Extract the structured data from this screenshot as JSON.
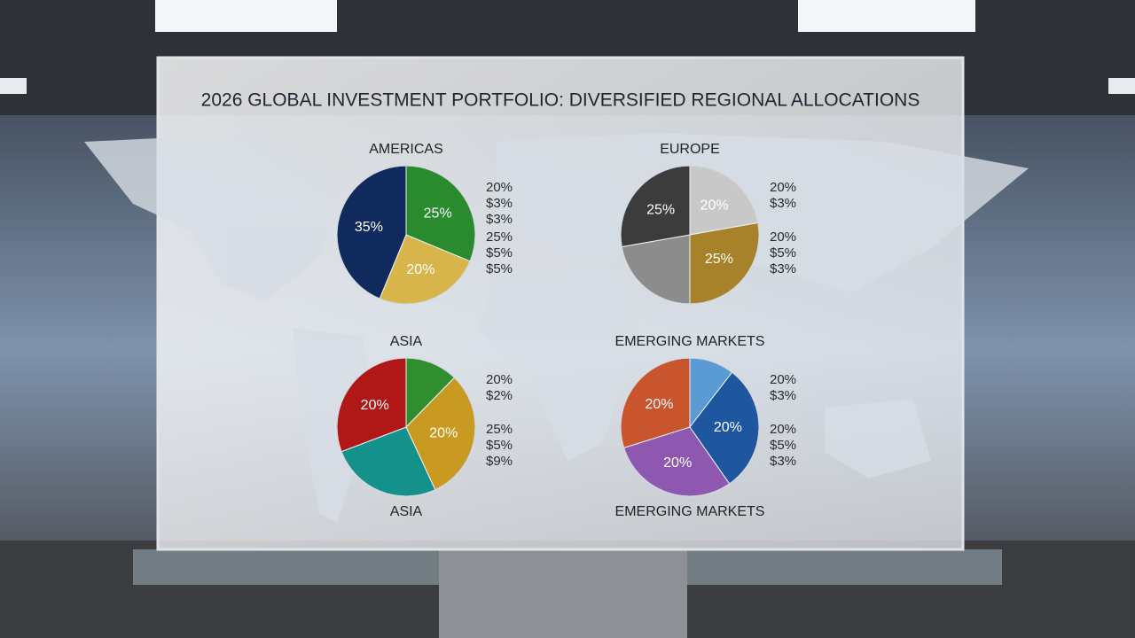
{
  "title": "2026 GLOBAL INVESTMENT PORTFOLIO: DIVERSIFIED REGIONAL ALLOCATIONS",
  "chart_data": [
    {
      "type": "pie",
      "title": "AMERICAS",
      "values": [
        25,
        20,
        35
      ],
      "value_labels": [
        "25%",
        "20%",
        "35%"
      ],
      "colors": [
        "#2a8a2e",
        "#d8b54a",
        "#112a5e"
      ],
      "side_labels": [
        [
          "20%",
          "$3%",
          "$3%"
        ],
        [
          "25%",
          "$5%",
          "$5%"
        ]
      ]
    },
    {
      "type": "pie",
      "title": "EUROPE",
      "values": [
        20,
        25,
        20,
        25
      ],
      "value_labels": [
        "20%",
        "25%",
        null,
        "25%"
      ],
      "colors": [
        "#c8c8c8",
        "#a8822a",
        "#8c8c8c",
        "#3c3c3c"
      ],
      "side_labels": [
        [
          "20%",
          "$3%"
        ],
        [
          "20%",
          "$5%",
          "$3%"
        ]
      ]
    },
    {
      "type": "pie",
      "title": "ASIA",
      "footer": "ASIA",
      "values": [
        8,
        20,
        17,
        20
      ],
      "value_labels": [
        null,
        "20%",
        null,
        "20%"
      ],
      "colors": [
        "#2f8f2f",
        "#c99a22",
        "#13918a",
        "#b01717"
      ],
      "side_labels": [
        [
          "20%",
          "$2%"
        ],
        [
          "25%",
          "$5%",
          "$9%"
        ]
      ]
    },
    {
      "type": "pie",
      "title": "EMERGING MARKETS",
      "footer": "EMERGING MARKETS",
      "values": [
        7,
        20,
        20,
        20
      ],
      "value_labels": [
        null,
        "20%",
        "20%",
        "20%"
      ],
      "colors": [
        "#5b9bd5",
        "#1f56a0",
        "#8e58b0",
        "#c8552e"
      ],
      "side_labels": [
        [
          "20%",
          "$3%"
        ],
        [
          "20%",
          "$5%",
          "$3%"
        ]
      ]
    }
  ]
}
